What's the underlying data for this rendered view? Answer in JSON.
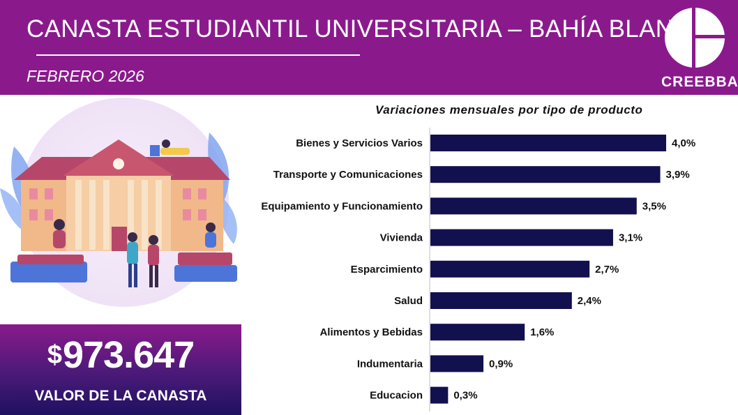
{
  "header": {
    "title": "CANASTA ESTUDIANTIL UNIVERSITARIA – BAHÍA BLANCA",
    "subtitle": "FEBRERO 2026",
    "logo_text": "CREEBBA"
  },
  "summary": {
    "currency": "$",
    "amount": "973.647",
    "label": "VALOR DE LA CANASTA"
  },
  "illustration": {
    "name": "university-students-illustration"
  },
  "colors": {
    "header_bg": "#8a1a8c",
    "bar": "#12104f"
  },
  "chart_data": {
    "type": "bar",
    "orientation": "horizontal",
    "title": "Variaciones mensuales por tipo de producto",
    "categories": [
      "Bienes y Servicios Varios",
      "Transporte y Comunicaciones",
      "Equipamiento y Funcionamiento",
      "Vivienda",
      "Esparcimiento",
      "Salud",
      "Alimentos y Bebidas",
      "Indumentaria",
      "Educacion"
    ],
    "values": [
      4.0,
      3.9,
      3.5,
      3.1,
      2.7,
      2.4,
      1.6,
      0.9,
      0.3
    ],
    "value_labels": [
      "4,0%",
      "3,9%",
      "3,5%",
      "3,1%",
      "2,7%",
      "2,4%",
      "1,6%",
      "0,9%",
      "0,3%"
    ],
    "xlim": [
      0,
      4.0
    ],
    "grid": false,
    "legend": "none"
  }
}
